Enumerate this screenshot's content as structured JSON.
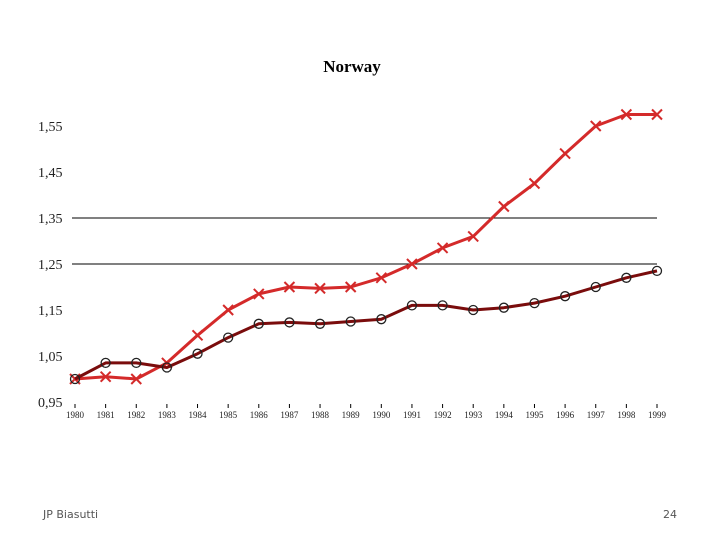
{
  "chart_data": {
    "type": "line",
    "title": "Norway",
    "xlabel": "",
    "ylabel": "",
    "x": [
      "1980",
      "1981",
      "1982",
      "1983",
      "1984",
      "1985",
      "1986",
      "1987",
      "1988",
      "1989",
      "1990",
      "1991",
      "1992",
      "1993",
      "1994",
      "1995",
      "1996",
      "1997",
      "1998",
      "1999"
    ],
    "ylim": [
      0.95,
      1.6
    ],
    "yticks": [
      "0,95",
      "1,05",
      "1,15",
      "1,25",
      "1,35",
      "1,45",
      "1,55"
    ],
    "ytick_values": [
      0.95,
      1.05,
      1.15,
      1.25,
      1.35,
      1.45,
      1.55
    ],
    "gridlines_at": [
      1.25,
      1.35
    ],
    "legend": "none",
    "series": [
      {
        "marker": "x",
        "color": "#d42a2a",
        "values": [
          1.0,
          1.005,
          1.0,
          1.035,
          1.095,
          1.15,
          1.185,
          1.2,
          1.197,
          1.2,
          1.22,
          1.25,
          1.285,
          1.31,
          1.375,
          1.425,
          1.49,
          1.55,
          1.575,
          1.575
        ]
      },
      {
        "marker": "o",
        "color": "#7a0c0c",
        "values": [
          1.0,
          1.035,
          1.035,
          1.025,
          1.055,
          1.09,
          1.12,
          1.123,
          1.12,
          1.125,
          1.13,
          1.16,
          1.16,
          1.15,
          1.155,
          1.165,
          1.18,
          1.2,
          1.22,
          1.235
        ]
      }
    ]
  },
  "footer": {
    "author": "JP Biasutti",
    "page_number": "24"
  }
}
